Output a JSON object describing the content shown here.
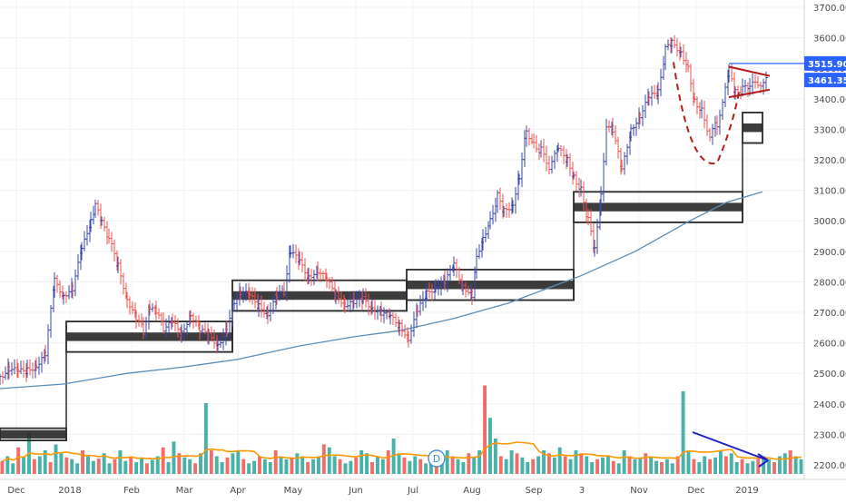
{
  "chart_data": {
    "type": "ohlc",
    "y_axis": {
      "ticks": [
        "3700.00",
        "3600.00",
        "3500.00",
        "3400.00",
        "3300.00",
        "3200.00",
        "3100.00",
        "3000.00",
        "2900.00",
        "2800.00",
        "2700.00",
        "2600.00",
        "2500.00",
        "2400.00",
        "2300.00",
        "2200.00"
      ],
      "range": [
        2170,
        3730
      ],
      "position": "right"
    },
    "x_axis": {
      "ticks": [
        "Dec",
        "2018",
        "Feb",
        "Mar",
        "Apr",
        "May",
        "Jun",
        "Jul",
        "Aug",
        "Sep",
        "3",
        "Nov",
        "Dec",
        "2019"
      ]
    },
    "price_labels": [
      {
        "text": "3515.90",
        "value": 3515.9,
        "color": "#2962ff"
      },
      {
        "text": "3461.35",
        "value": 3461.35,
        "color": "#2962ff"
      }
    ],
    "volume_marker": "D",
    "colors": {
      "up": "#3949ab",
      "down": "#ef5350",
      "ma": "#5b8db8",
      "zones": "#2b2b2b",
      "volume_up": "#26a69a",
      "volume_down": "#ef5350",
      "volume_ma": "#ff9800",
      "annotation": "#b71c1c",
      "arrow": "#1e1ec8"
    },
    "grid": true,
    "ma_path": [
      [
        0,
        2450
      ],
      [
        70,
        2465
      ],
      [
        140,
        2500
      ],
      [
        200,
        2520
      ],
      [
        260,
        2545
      ],
      [
        330,
        2590
      ],
      [
        390,
        2620
      ],
      [
        440,
        2640
      ],
      [
        500,
        2680
      ],
      [
        560,
        2730
      ],
      [
        640,
        2820
      ],
      [
        700,
        2900
      ],
      [
        760,
        3000
      ],
      [
        800,
        3060
      ],
      [
        840,
        3095
      ]
    ],
    "closes": [
      [
        0,
        2490
      ],
      [
        10,
        2520
      ],
      [
        20,
        2500
      ],
      [
        30,
        2510
      ],
      [
        40,
        2530
      ],
      [
        50,
        2560
      ],
      [
        60,
        2800
      ],
      [
        70,
        2760
      ],
      [
        80,
        2780
      ],
      [
        90,
        2900
      ],
      [
        100,
        3000
      ],
      [
        105,
        3050
      ],
      [
        112,
        2990
      ],
      [
        120,
        2940
      ],
      [
        130,
        2850
      ],
      [
        140,
        2750
      ],
      [
        150,
        2680
      ],
      [
        158,
        2640
      ],
      [
        165,
        2720
      ],
      [
        172,
        2700
      ],
      [
        180,
        2650
      ],
      [
        190,
        2660
      ],
      [
        200,
        2630
      ],
      [
        210,
        2700
      ],
      [
        220,
        2640
      ],
      [
        230,
        2620
      ],
      [
        240,
        2600
      ],
      [
        250,
        2640
      ],
      [
        258,
        2740
      ],
      [
        265,
        2770
      ],
      [
        275,
        2750
      ],
      [
        285,
        2720
      ],
      [
        295,
        2700
      ],
      [
        305,
        2750
      ],
      [
        313,
        2770
      ],
      [
        320,
        2900
      ],
      [
        330,
        2860
      ],
      [
        340,
        2820
      ],
      [
        350,
        2840
      ],
      [
        360,
        2800
      ],
      [
        370,
        2760
      ],
      [
        380,
        2730
      ],
      [
        390,
        2730
      ],
      [
        400,
        2740
      ],
      [
        410,
        2720
      ],
      [
        420,
        2700
      ],
      [
        430,
        2680
      ],
      [
        440,
        2660
      ],
      [
        450,
        2620
      ],
      [
        460,
        2700
      ],
      [
        470,
        2760
      ],
      [
        480,
        2790
      ],
      [
        490,
        2800
      ],
      [
        500,
        2850
      ],
      [
        510,
        2790
      ],
      [
        520,
        2760
      ],
      [
        525,
        2880
      ],
      [
        532,
        2950
      ],
      [
        540,
        3000
      ],
      [
        548,
        3080
      ],
      [
        555,
        3030
      ],
      [
        565,
        3060
      ],
      [
        572,
        3150
      ],
      [
        580,
        3300
      ],
      [
        588,
        3250
      ],
      [
        596,
        3230
      ],
      [
        605,
        3180
      ],
      [
        615,
        3230
      ],
      [
        625,
        3200
      ],
      [
        632,
        3150
      ],
      [
        640,
        3100
      ],
      [
        648,
        3000
      ],
      [
        655,
        2900
      ],
      [
        662,
        3080
      ],
      [
        668,
        3320
      ],
      [
        675,
        3300
      ],
      [
        685,
        3160
      ],
      [
        695,
        3300
      ],
      [
        705,
        3350
      ],
      [
        715,
        3400
      ],
      [
        725,
        3420
      ],
      [
        733,
        3560
      ],
      [
        740,
        3580
      ],
      [
        750,
        3560
      ],
      [
        758,
        3500
      ],
      [
        765,
        3400
      ],
      [
        773,
        3360
      ],
      [
        782,
        3280
      ],
      [
        790,
        3320
      ],
      [
        796,
        3380
      ],
      [
        803,
        3490
      ],
      [
        810,
        3420
      ],
      [
        818,
        3430
      ],
      [
        826,
        3440
      ],
      [
        835,
        3450
      ],
      [
        845,
        3461
      ]
    ],
    "zones": [
      {
        "x1": 0,
        "x2": 73,
        "center": 2300,
        "thick_half": 14,
        "box_half": 20
      },
      {
        "x1": 73,
        "x2": 256,
        "center": 2620,
        "thick_half": 14,
        "box_half": 50
      },
      {
        "x1": 256,
        "x2": 448,
        "center": 2755,
        "thick_half": 14,
        "box_half": 50
      },
      {
        "x1": 448,
        "x2": 632,
        "center": 2790,
        "thick_half": 14,
        "box_half": 50
      },
      {
        "x1": 632,
        "x2": 818,
        "center": 3045,
        "thick_half": 14,
        "box_half": 50
      },
      {
        "x1": 818,
        "x2": 840,
        "center": 3305,
        "thick_half": 14,
        "box_half": 50
      }
    ],
    "volumes": [
      22,
      30,
      18,
      45,
      28,
      70,
      25,
      30,
      40,
      20,
      50,
      35,
      28,
      25,
      18,
      40,
      30,
      22,
      26,
      35,
      18,
      25,
      40,
      22,
      30,
      20,
      28,
      18,
      24,
      30,
      45,
      20,
      55,
      35,
      28,
      25,
      18,
      35,
      120,
      40,
      30,
      20,
      28,
      35,
      40,
      25,
      18,
      22,
      30,
      25,
      20,
      40,
      30,
      25,
      28,
      35,
      30,
      20,
      25,
      30,
      50,
      45,
      30,
      25,
      18,
      22,
      28,
      40,
      35,
      20,
      30,
      25,
      40,
      60,
      35,
      28,
      22,
      30,
      25,
      18,
      22,
      28,
      35,
      40,
      30,
      25,
      20,
      35,
      28,
      40,
      150,
      95,
      60,
      30,
      25,
      40,
      35,
      28,
      20,
      25,
      30,
      40,
      35,
      28,
      45,
      30,
      25,
      40,
      35,
      30,
      20,
      25,
      28,
      30,
      22,
      18,
      40,
      30,
      25,
      28,
      35,
      30,
      22,
      20,
      25,
      18,
      30,
      140,
      40,
      25,
      20,
      30,
      25,
      28,
      40,
      30,
      35,
      20,
      25,
      18,
      22,
      28,
      30,
      25,
      20,
      30,
      35,
      40,
      30,
      25
    ]
  }
}
